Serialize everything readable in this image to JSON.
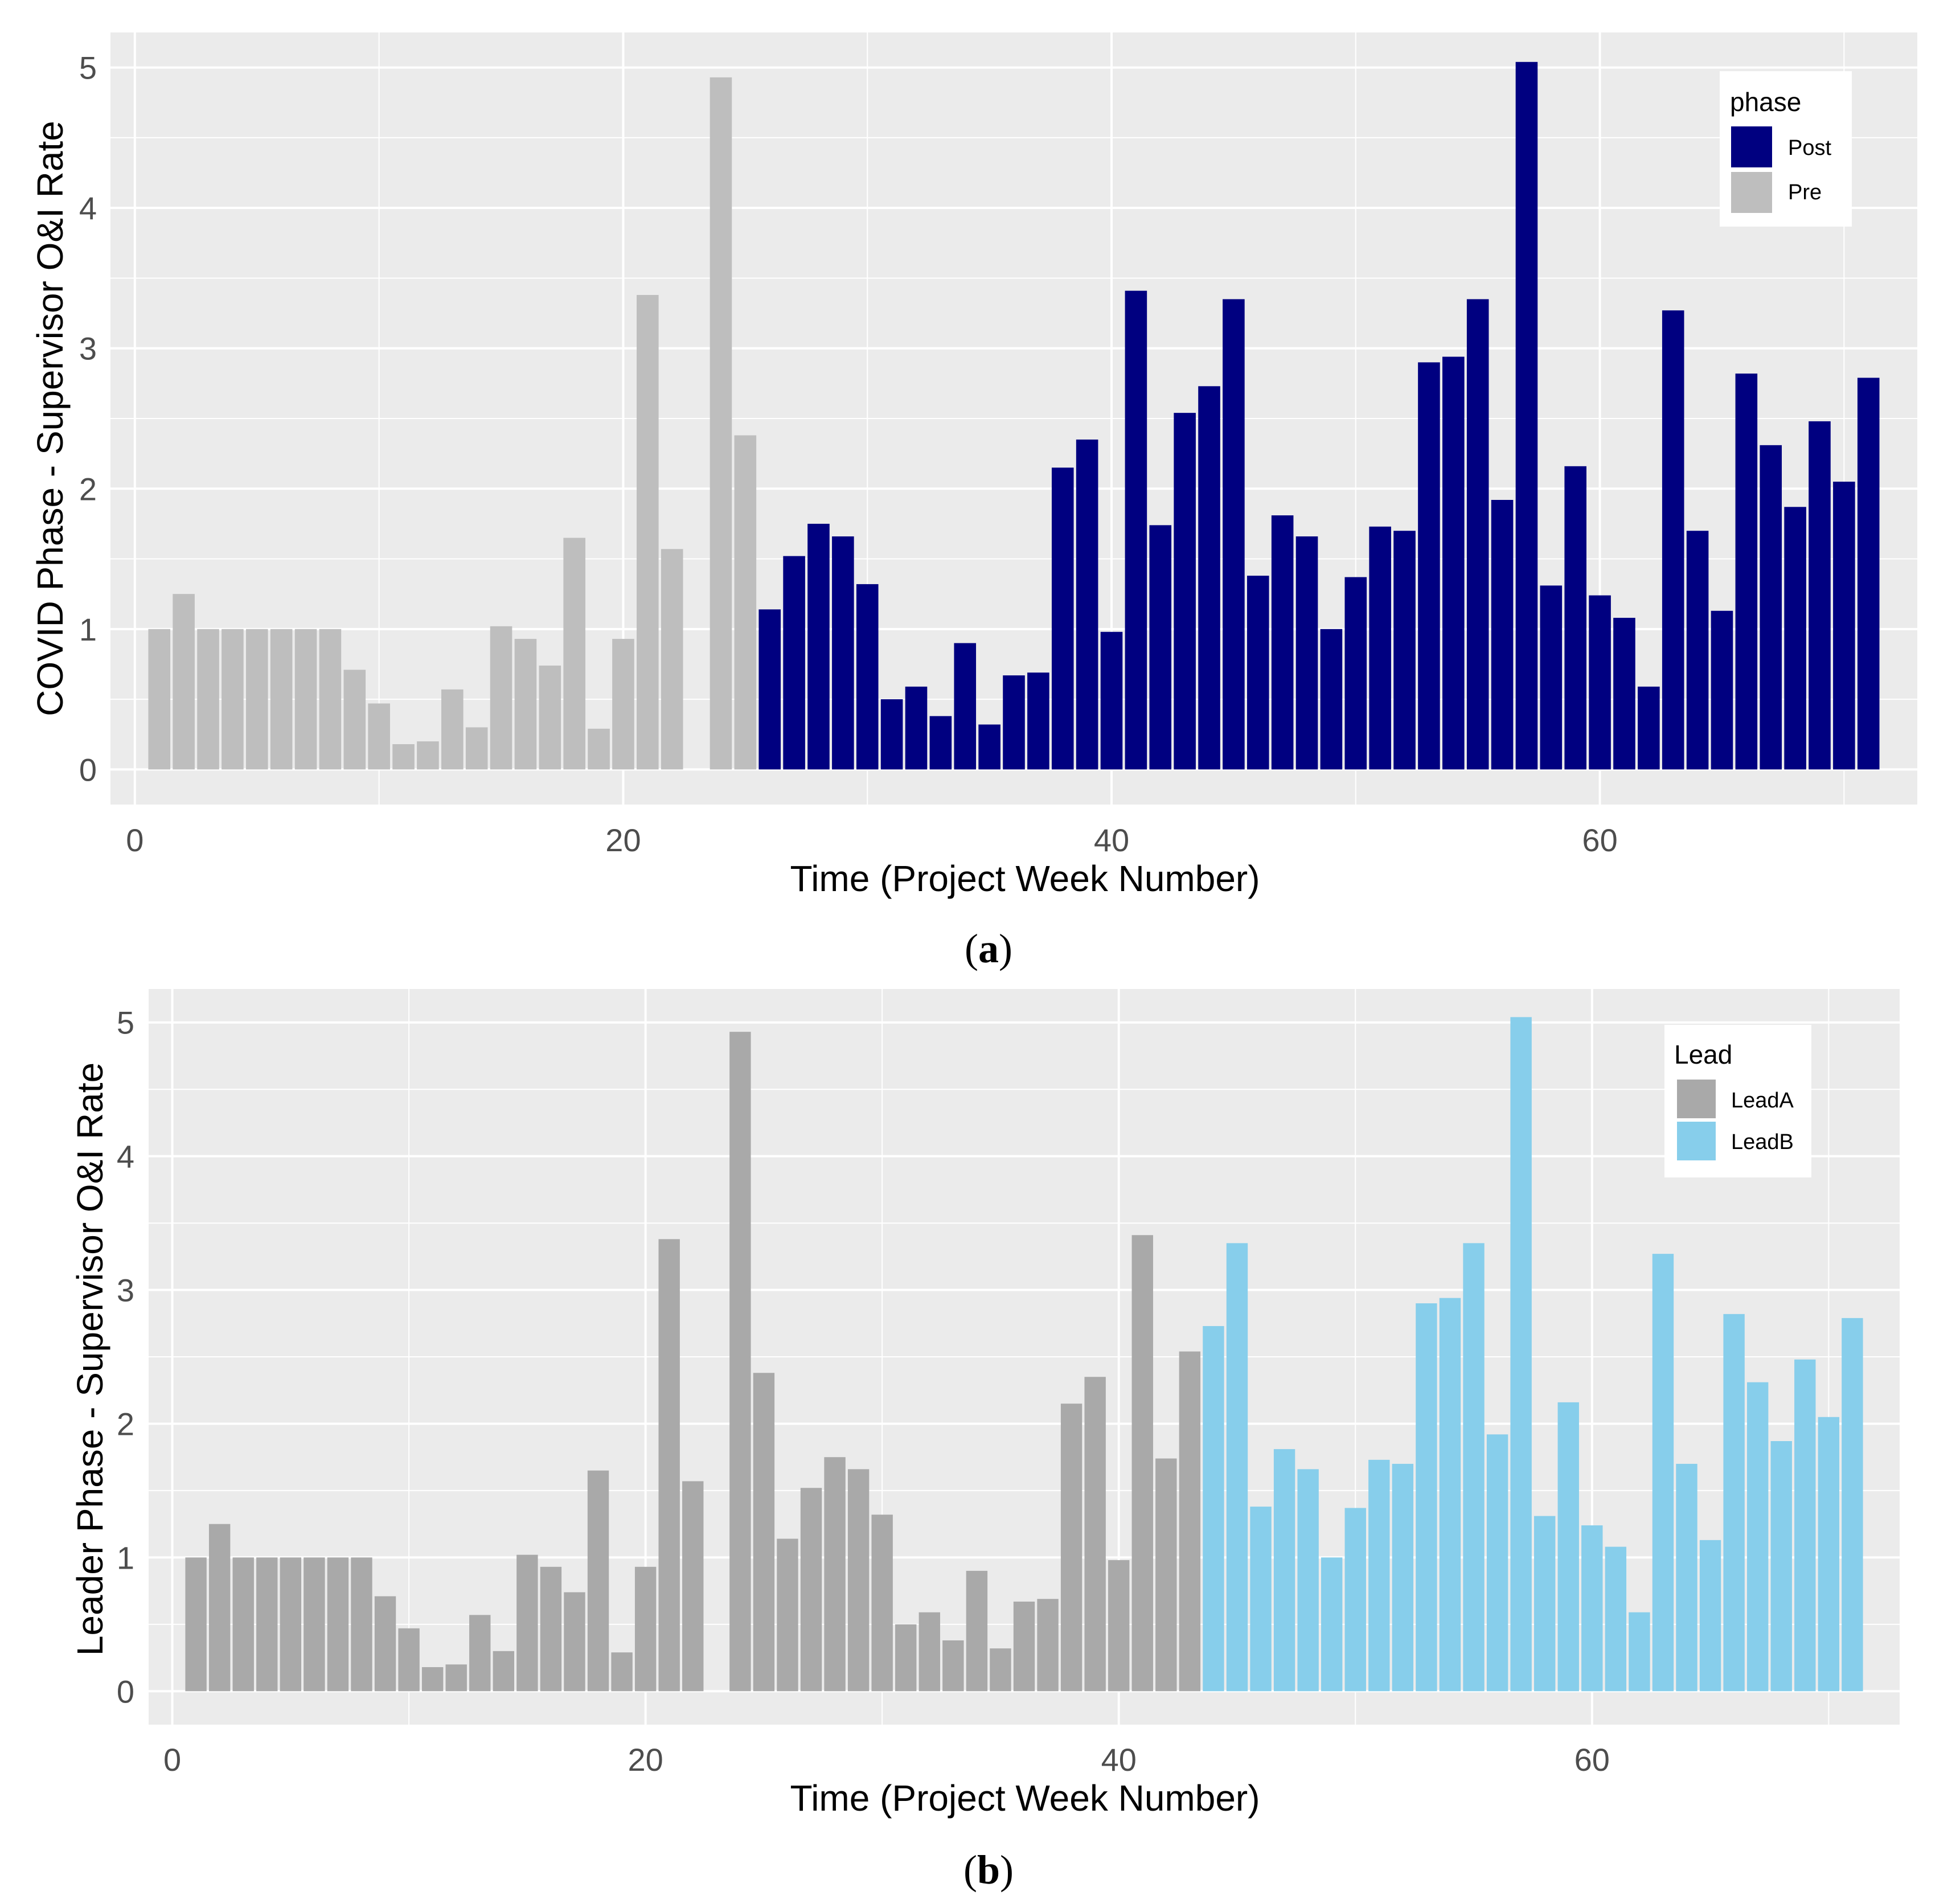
{
  "colors": {
    "panel_bg": "#ebebeb",
    "grid": "#ffffff",
    "post": "#000080",
    "pre": "#bebebe",
    "leadA": "#a9a9a9",
    "leadB": "#87ceeb"
  },
  "chart_data": [
    {
      "type": "bar",
      "caption": {
        "open": "(",
        "letter": "a",
        "close": ")"
      },
      "xlabel": "Time (Project Week Number)",
      "ylabel": "COVID Phase - Supervisor O&I Rate",
      "xlim": [
        -1,
        73
      ],
      "ylim": [
        -0.25,
        5.25
      ],
      "x_ticks": [
        0,
        20,
        40,
        60
      ],
      "y_ticks": [
        0,
        1,
        2,
        3,
        4,
        5
      ],
      "x_tick_labels": [
        "0",
        "20",
        "40",
        "60"
      ],
      "y_tick_labels": [
        "0",
        "1",
        "2",
        "3",
        "4",
        "5"
      ],
      "legend": {
        "title": "phase",
        "position": "top-right",
        "entries": [
          {
            "label": "Post",
            "color_key": "post"
          },
          {
            "label": "Pre",
            "color_key": "pre"
          }
        ]
      },
      "split_week": 25,
      "before_group": "Pre",
      "after_group": "Post",
      "x": [
        1,
        2,
        3,
        4,
        5,
        6,
        7,
        8,
        9,
        10,
        11,
        12,
        13,
        14,
        15,
        16,
        17,
        18,
        19,
        20,
        21,
        22,
        24,
        25,
        26,
        27,
        28,
        29,
        30,
        31,
        32,
        33,
        34,
        35,
        36,
        37,
        38,
        39,
        40,
        41,
        42,
        43,
        44,
        45,
        46,
        47,
        48,
        49,
        50,
        51,
        52,
        53,
        54,
        55,
        56,
        57,
        58,
        59,
        60,
        61,
        62,
        63,
        64,
        65,
        66,
        67,
        68,
        69,
        70,
        71
      ],
      "values": [
        1.0,
        1.25,
        1.0,
        1.0,
        1.0,
        1.0,
        1.0,
        1.0,
        0.71,
        0.47,
        0.18,
        0.2,
        0.57,
        0.3,
        1.02,
        0.93,
        0.74,
        1.65,
        0.29,
        0.93,
        3.38,
        1.57,
        4.93,
        2.38,
        1.14,
        1.52,
        1.75,
        1.66,
        1.32,
        0.5,
        0.59,
        0.38,
        0.9,
        0.32,
        0.67,
        0.69,
        2.15,
        2.35,
        0.98,
        3.41,
        1.74,
        2.54,
        2.73,
        3.35,
        1.38,
        1.81,
        1.66,
        1.0,
        1.37,
        1.73,
        1.7,
        2.9,
        2.94,
        3.35,
        1.92,
        5.04,
        1.31,
        2.16,
        1.24,
        1.08,
        0.59,
        3.27,
        1.7,
        1.13,
        2.82,
        2.31,
        1.87,
        2.48,
        2.05,
        2.79
      ]
    },
    {
      "type": "bar",
      "caption": {
        "open": "(",
        "letter": "b",
        "close": ")"
      },
      "xlabel": "Time (Project Week Number)",
      "ylabel": "Leader Phase - Supervisor O&I Rate",
      "xlim": [
        -1,
        73
      ],
      "ylim": [
        -0.25,
        5.25
      ],
      "x_ticks": [
        0,
        20,
        40,
        60
      ],
      "y_ticks": [
        0,
        1,
        2,
        3,
        4,
        5
      ],
      "x_tick_labels": [
        "0",
        "20",
        "40",
        "60"
      ],
      "y_tick_labels": [
        "0",
        "1",
        "2",
        "3",
        "4",
        "5"
      ],
      "legend": {
        "title": "Lead",
        "position": "top-right",
        "entries": [
          {
            "label": "LeadA",
            "color_key": "leadA"
          },
          {
            "label": "LeadB",
            "color_key": "leadB"
          }
        ]
      },
      "split_week": 43,
      "before_group": "LeadA",
      "after_group": "LeadB",
      "x": [
        1,
        2,
        3,
        4,
        5,
        6,
        7,
        8,
        9,
        10,
        11,
        12,
        13,
        14,
        15,
        16,
        17,
        18,
        19,
        20,
        21,
        22,
        24,
        25,
        26,
        27,
        28,
        29,
        30,
        31,
        32,
        33,
        34,
        35,
        36,
        37,
        38,
        39,
        40,
        41,
        42,
        43,
        44,
        45,
        46,
        47,
        48,
        49,
        50,
        51,
        52,
        53,
        54,
        55,
        56,
        57,
        58,
        59,
        60,
        61,
        62,
        63,
        64,
        65,
        66,
        67,
        68,
        69,
        70,
        71
      ],
      "values": [
        1.0,
        1.25,
        1.0,
        1.0,
        1.0,
        1.0,
        1.0,
        1.0,
        0.71,
        0.47,
        0.18,
        0.2,
        0.57,
        0.3,
        1.02,
        0.93,
        0.74,
        1.65,
        0.29,
        0.93,
        3.38,
        1.57,
        4.93,
        2.38,
        1.14,
        1.52,
        1.75,
        1.66,
        1.32,
        0.5,
        0.59,
        0.38,
        0.9,
        0.32,
        0.67,
        0.69,
        2.15,
        2.35,
        0.98,
        3.41,
        1.74,
        2.54,
        2.73,
        3.35,
        1.38,
        1.81,
        1.66,
        1.0,
        1.37,
        1.73,
        1.7,
        2.9,
        2.94,
        3.35,
        1.92,
        5.04,
        1.31,
        2.16,
        1.24,
        1.08,
        0.59,
        3.27,
        1.7,
        1.13,
        2.82,
        2.31,
        1.87,
        2.48,
        2.05,
        2.79
      ]
    }
  ]
}
